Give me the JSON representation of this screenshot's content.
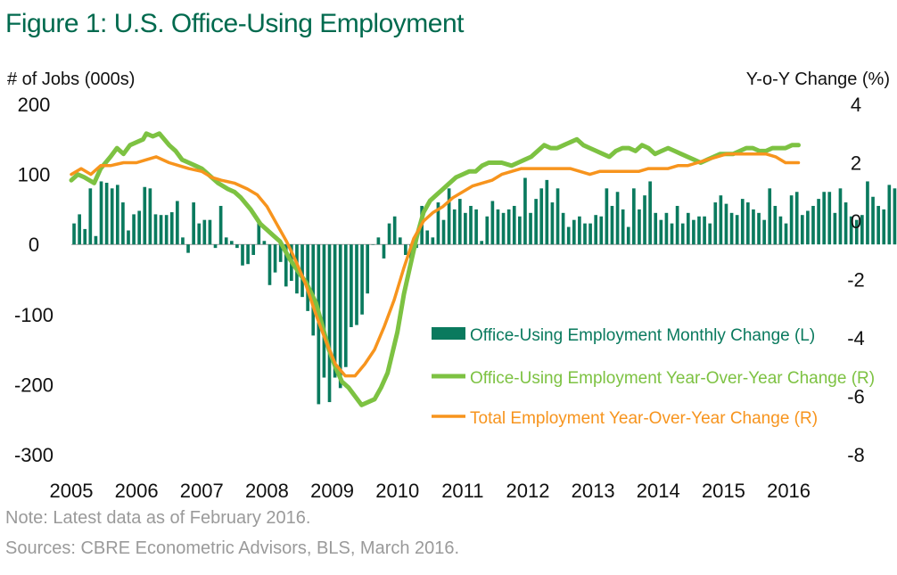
{
  "title": "Figure 1: U.S. Office-Using Employment",
  "notes": {
    "note": "Note: Latest data as of February 2016.",
    "sources": "Sources: CBRE Econometric Advisors, BLS, March 2016."
  },
  "colors": {
    "bars": "#0a7a5e",
    "office_yoy": "#7dc242",
    "total_yoy": "#f7941d",
    "title": "#006a4e"
  },
  "chart_data": {
    "type": "bar",
    "ylabel_left": "# of Jobs (000s)",
    "ylabel_right": "Y-o-Y Change (%)",
    "ylim_left": [
      -300,
      200
    ],
    "ylim_right": [
      -8,
      4
    ],
    "yticks_left": [
      200,
      100,
      0,
      -100,
      -200,
      -300
    ],
    "yticks_right": [
      4,
      2,
      0,
      -2,
      -4,
      -6,
      -8
    ],
    "yticklabels_left": [
      "200",
      "100",
      "0",
      "-100",
      "-200",
      "-300"
    ],
    "yticklabels_right": [
      "4",
      "2",
      "0",
      "-2",
      "-4",
      "-6",
      "-8"
    ],
    "xticks": [
      "2005",
      "2006",
      "2007",
      "2008",
      "2009",
      "2010",
      "2011",
      "2012",
      "2013",
      "2014",
      "2015",
      "2016"
    ],
    "x_start": 2005.0,
    "x_end": 2016.17,
    "legend": [
      "Office-Using Employment Monthly Change (L)",
      "Office-Using Employment Year-Over-Year Change (R)",
      "Total Employment Year-Over-Year Change (R)"
    ],
    "series": [
      {
        "name": "Office-Using Employment Monthly Change (L)",
        "type": "bar",
        "axis": "left",
        "x_start": 2005.0,
        "step_months": 1,
        "values": [
          30,
          43,
          22,
          80,
          12,
          90,
          88,
          80,
          85,
          60,
          20,
          43,
          48,
          82,
          80,
          43,
          42,
          42,
          46,
          62,
          10,
          -12,
          60,
          30,
          35,
          35,
          -5,
          55,
          10,
          5,
          -5,
          -30,
          -28,
          -15,
          32,
          5,
          -58,
          -40,
          -25,
          -60,
          -52,
          -70,
          -75,
          -95,
          -130,
          -228,
          -190,
          -225,
          -190,
          -205,
          -175,
          -118,
          -115,
          -100,
          -70,
          0,
          10,
          -20,
          30,
          40,
          10,
          -15,
          -20,
          -5,
          55,
          20,
          10,
          60,
          35,
          80,
          50,
          65,
          45,
          55,
          50,
          5,
          40,
          62,
          50,
          45,
          50,
          55,
          40,
          95,
          45,
          65,
          80,
          92,
          60,
          80,
          45,
          25,
          35,
          40,
          30,
          30,
          42,
          40,
          80,
          55,
          75,
          50,
          25,
          80,
          50,
          70,
          90,
          45,
          35,
          45,
          30,
          55,
          30,
          45,
          35,
          40,
          40,
          30,
          60,
          70,
          58,
          45,
          42,
          65,
          60,
          50,
          45,
          35,
          80,
          55,
          40,
          30,
          70,
          75,
          42,
          48,
          55,
          65,
          75,
          75,
          45,
          80,
          60,
          40,
          35,
          42,
          90,
          68,
          55,
          50,
          85,
          80,
          75,
          40,
          90,
          65,
          68,
          40,
          35
        ]
      },
      {
        "name": "Office-Using Employment Year-Over-Year Change (R)",
        "type": "line",
        "axis": "right",
        "x": [
          2005.0,
          2005.1,
          2005.2,
          2005.35,
          2005.45,
          2005.6,
          2005.7,
          2005.8,
          2005.9,
          2006.0,
          2006.1,
          2006.15,
          2006.25,
          2006.35,
          2006.5,
          2006.6,
          2006.7,
          2006.8,
          2006.9,
          2007.0,
          2007.1,
          2007.25,
          2007.4,
          2007.5,
          2007.6,
          2007.75,
          2007.9,
          2008.0,
          2008.1,
          2008.2,
          2008.35,
          2008.5,
          2008.6,
          2008.75,
          2008.85,
          2008.95,
          2009.05,
          2009.15,
          2009.25,
          2009.35,
          2009.45,
          2009.55,
          2009.65,
          2009.75,
          2009.85,
          2010.0,
          2010.1,
          2010.2,
          2010.3,
          2010.4,
          2010.5,
          2010.6,
          2010.7,
          2010.8,
          2010.9,
          2011.0,
          2011.1,
          2011.2,
          2011.3,
          2011.4,
          2011.5,
          2011.6,
          2011.75,
          2011.85,
          2011.95,
          2012.05,
          2012.15,
          2012.25,
          2012.35,
          2012.45,
          2012.55,
          2012.65,
          2012.75,
          2012.85,
          2012.95,
          2013.05,
          2013.15,
          2013.25,
          2013.35,
          2013.45,
          2013.55,
          2013.65,
          2013.75,
          2013.85,
          2013.95,
          2014.05,
          2014.15,
          2014.25,
          2014.35,
          2014.45,
          2014.55,
          2014.65,
          2014.75,
          2014.85,
          2014.95,
          2015.05,
          2015.15,
          2015.25,
          2015.35,
          2015.45,
          2015.55,
          2015.65,
          2015.75,
          2015.85,
          2015.95,
          2016.05,
          2016.15
        ],
        "values": [
          1.4,
          1.6,
          1.5,
          1.3,
          1.8,
          2.2,
          2.5,
          2.3,
          2.6,
          2.7,
          2.8,
          3.0,
          2.9,
          3.0,
          2.6,
          2.4,
          2.1,
          2.0,
          1.9,
          1.8,
          1.6,
          1.3,
          1.1,
          1.0,
          0.8,
          0.4,
          -0.1,
          -0.3,
          -0.5,
          -0.7,
          -1.3,
          -1.8,
          -2.1,
          -2.8,
          -3.6,
          -4.4,
          -5.0,
          -5.5,
          -5.7,
          -6.0,
          -6.3,
          -6.2,
          -6.1,
          -5.7,
          -5.2,
          -3.8,
          -2.5,
          -1.5,
          -0.5,
          0.3,
          0.7,
          0.9,
          1.1,
          1.3,
          1.5,
          1.6,
          1.7,
          1.7,
          1.9,
          2.0,
          2.0,
          2.0,
          1.9,
          2.0,
          2.1,
          2.2,
          2.4,
          2.6,
          2.5,
          2.5,
          2.6,
          2.7,
          2.8,
          2.6,
          2.5,
          2.4,
          2.3,
          2.2,
          2.4,
          2.5,
          2.5,
          2.4,
          2.6,
          2.5,
          2.3,
          2.4,
          2.5,
          2.4,
          2.3,
          2.2,
          2.1,
          2.0,
          2.1,
          2.2,
          2.3,
          2.3,
          2.3,
          2.4,
          2.5,
          2.5,
          2.4,
          2.4,
          2.5,
          2.5,
          2.5,
          2.6,
          2.6
        ]
      },
      {
        "name": "Total Employment Year-Over-Year Change (R)",
        "type": "line",
        "axis": "right",
        "x": [
          2005.0,
          2005.15,
          2005.3,
          2005.45,
          2005.6,
          2005.8,
          2006.0,
          2006.15,
          2006.3,
          2006.5,
          2006.65,
          2006.8,
          2007.0,
          2007.15,
          2007.3,
          2007.5,
          2007.7,
          2007.85,
          2008.0,
          2008.15,
          2008.3,
          2008.45,
          2008.6,
          2008.75,
          2008.9,
          2009.05,
          2009.2,
          2009.35,
          2009.5,
          2009.65,
          2009.8,
          2009.95,
          2010.1,
          2010.25,
          2010.4,
          2010.55,
          2010.7,
          2010.85,
          2011.0,
          2011.15,
          2011.3,
          2011.45,
          2011.6,
          2011.75,
          2011.9,
          2012.05,
          2012.2,
          2012.35,
          2012.5,
          2012.65,
          2012.8,
          2012.95,
          2013.1,
          2013.25,
          2013.4,
          2013.55,
          2013.7,
          2013.85,
          2014.0,
          2014.15,
          2014.3,
          2014.45,
          2014.6,
          2014.75,
          2014.9,
          2015.05,
          2015.2,
          2015.35,
          2015.5,
          2015.65,
          2015.8,
          2015.95,
          2016.1,
          2016.15
        ],
        "values": [
          1.6,
          1.8,
          1.6,
          1.9,
          1.9,
          2.0,
          2.0,
          2.1,
          2.2,
          2.0,
          1.9,
          1.8,
          1.7,
          1.5,
          1.4,
          1.3,
          1.1,
          0.9,
          0.5,
          -0.1,
          -0.7,
          -1.4,
          -2.2,
          -3.2,
          -4.1,
          -4.9,
          -5.3,
          -5.3,
          -4.9,
          -4.4,
          -3.6,
          -2.7,
          -1.6,
          -0.6,
          0.0,
          0.3,
          0.5,
          0.8,
          1.0,
          1.2,
          1.3,
          1.4,
          1.6,
          1.7,
          1.8,
          1.8,
          1.8,
          1.8,
          1.8,
          1.8,
          1.7,
          1.6,
          1.7,
          1.7,
          1.7,
          1.7,
          1.7,
          1.8,
          1.8,
          1.8,
          1.9,
          1.9,
          2.0,
          2.1,
          2.2,
          2.3,
          2.3,
          2.3,
          2.3,
          2.3,
          2.2,
          2.0,
          2.0,
          2.0
        ]
      }
    ]
  }
}
